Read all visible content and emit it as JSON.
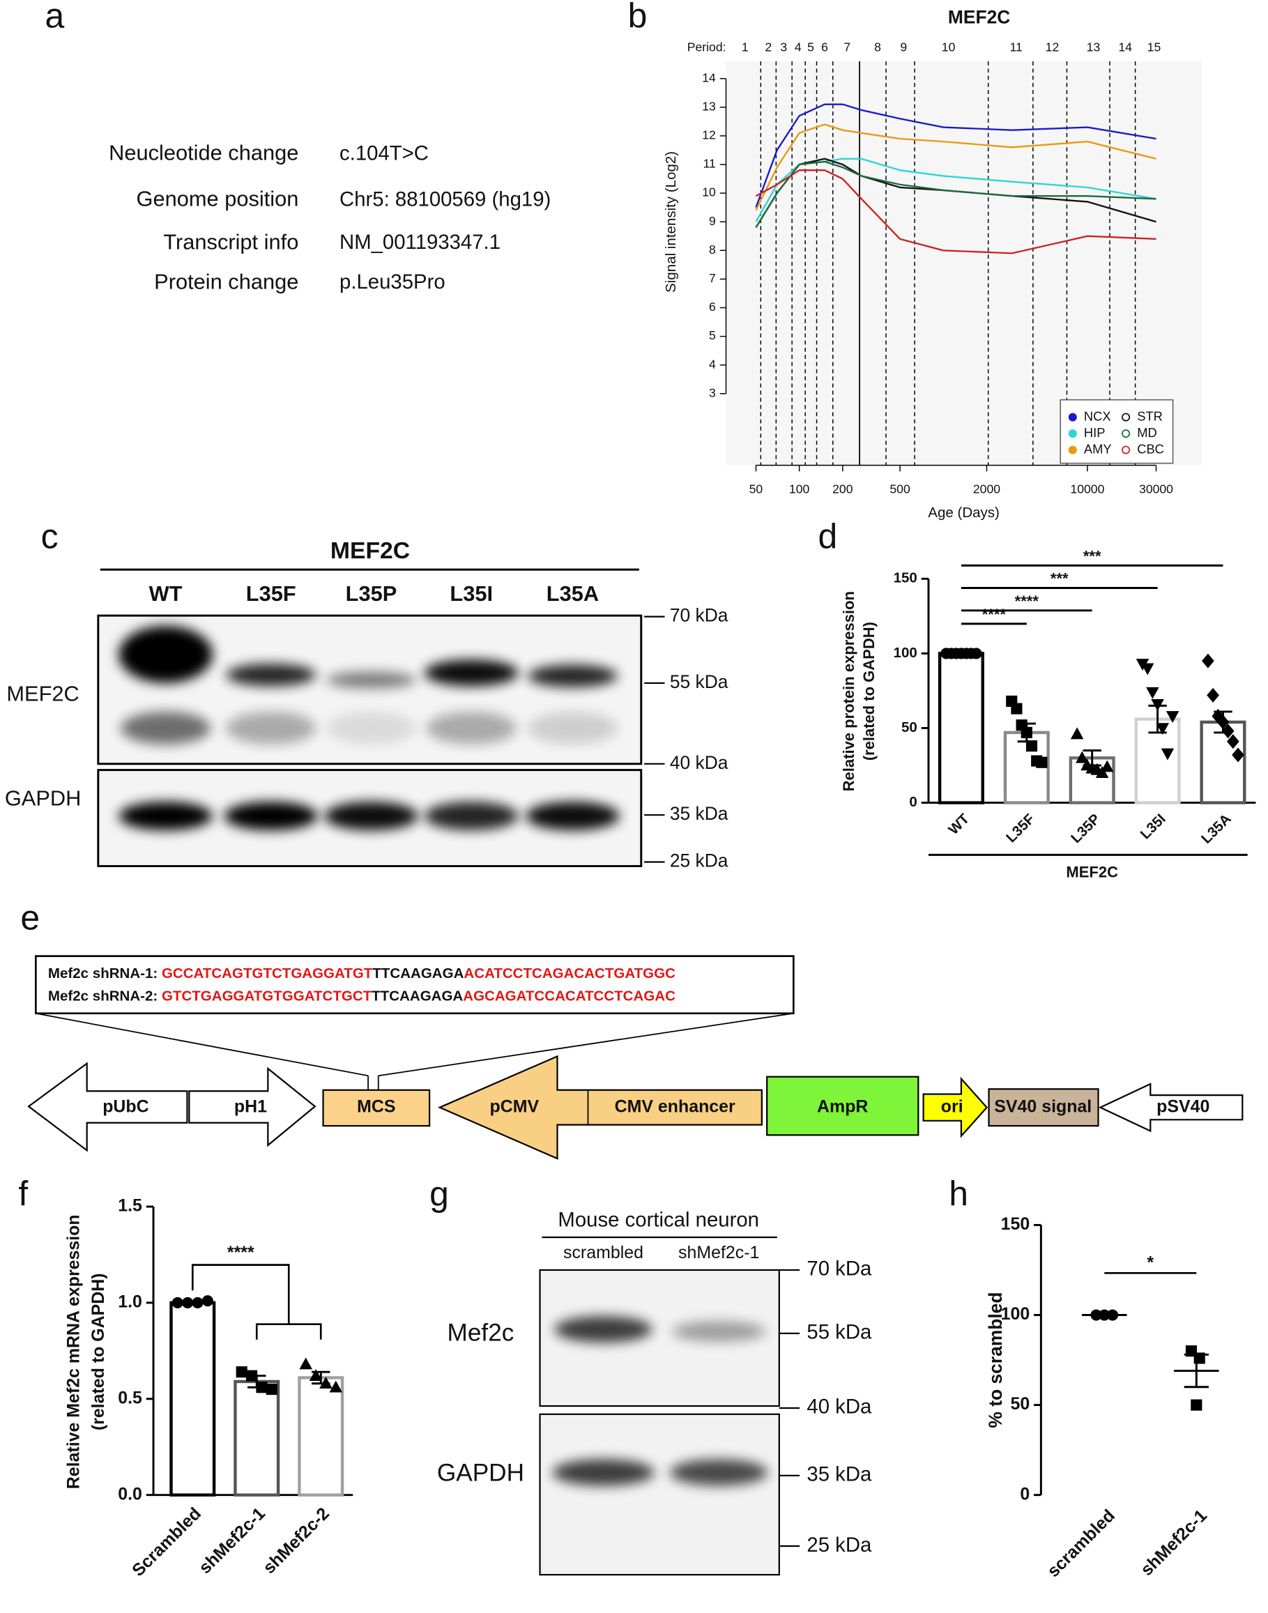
{
  "panel_labels": [
    "a",
    "b",
    "c",
    "d",
    "e",
    "f",
    "g",
    "h"
  ],
  "panel_a": {
    "rows": [
      [
        "Neucleotide change",
        "c.104T>C"
      ],
      [
        "Genome position",
        "Chr5: 88100569 (hg19)"
      ],
      [
        "Transcript info",
        "NM_001193347.1"
      ],
      [
        "Protein change",
        "p.Leu35Pro"
      ]
    ]
  },
  "chart_data": [
    {
      "type": "line",
      "title": "MEF2C",
      "xlabel": "Age (Days)",
      "ylabel": "Signal intensity (Log2)",
      "log_x": true,
      "xlim": [
        31,
        62000
      ],
      "xticks": [
        50,
        100,
        200,
        500,
        2000,
        10000,
        30000
      ],
      "ylim": [
        0.5,
        14.6
      ],
      "yticks": [
        3,
        4,
        5,
        6,
        7,
        8,
        9,
        10,
        11,
        12,
        13,
        14
      ],
      "period": {
        "label": "Period:",
        "labels": [
          1,
          2,
          3,
          4,
          5,
          6,
          7,
          8,
          9,
          10,
          11,
          12,
          13,
          14,
          15
        ],
        "x": [
          42,
          61,
          78,
          98,
          120,
          150,
          215,
          350,
          530,
          1085,
          3200,
          5700,
          11000,
          18300,
          29000
        ]
      },
      "period_lines": [
        54,
        69,
        89,
        110,
        132,
        171,
        400,
        632,
        2050,
        4190,
        7200,
        14300,
        21500
      ],
      "birth_line": 262,
      "x": [
        50,
        70,
        100,
        150,
        200,
        270,
        500,
        1000,
        3000,
        10000,
        30000
      ],
      "series": [
        {
          "name": "NCX",
          "color": "#1a1acc",
          "marker": "filled",
          "values": [
            9.5,
            11.5,
            12.7,
            13.1,
            13.1,
            12.9,
            12.6,
            12.3,
            12.2,
            12.3,
            11.9
          ]
        },
        {
          "name": "HIP",
          "color": "#2ad6d6",
          "marker": "filled",
          "values": [
            9.0,
            10.3,
            11.0,
            11.1,
            11.2,
            11.2,
            10.8,
            10.6,
            10.4,
            10.2,
            9.8
          ]
        },
        {
          "name": "AMY",
          "color": "#e89a10",
          "marker": "filled",
          "values": [
            9.4,
            10.9,
            12.1,
            12.4,
            12.2,
            12.1,
            11.9,
            11.8,
            11.6,
            11.8,
            11.2
          ]
        },
        {
          "name": "STR",
          "color": "#111111",
          "marker": "open",
          "values": [
            8.8,
            10.0,
            11.0,
            11.2,
            11.0,
            10.6,
            10.2,
            10.1,
            9.9,
            9.7,
            9.0
          ]
        },
        {
          "name": "MD",
          "color": "#1e6b3a",
          "marker": "open",
          "values": [
            8.8,
            10.0,
            11.0,
            11.1,
            10.9,
            10.6,
            10.3,
            10.1,
            9.9,
            9.9,
            9.8
          ]
        },
        {
          "name": "CBC",
          "color": "#cc2222",
          "marker": "open",
          "values": [
            9.9,
            10.3,
            10.8,
            10.8,
            10.5,
            9.8,
            8.4,
            8.0,
            7.9,
            8.5,
            8.4
          ]
        }
      ]
    },
    {
      "type": "bar",
      "ylabel": [
        "Relative protein expression",
        "(related to GAPDH)"
      ],
      "group_label": "MEF2C",
      "categories": [
        "WT",
        "L35F",
        "L35P",
        "L35I",
        "L35A"
      ],
      "values": [
        100,
        47,
        30,
        56,
        54
      ],
      "errors": [
        0,
        6,
        5,
        9,
        7
      ],
      "points": [
        [
          100,
          100,
          100,
          100,
          100,
          100,
          100
        ],
        [
          68,
          63,
          52,
          47,
          38,
          28,
          27
        ],
        [
          46,
          30,
          25,
          23,
          22,
          20,
          24
        ],
        [
          93,
          90,
          74,
          66,
          50,
          33,
          58
        ],
        [
          95,
          72,
          58,
          54,
          48,
          41,
          32
        ]
      ],
      "colors": [
        "#000000",
        "#8a8a8a",
        "#6e6e6e",
        "#cfcfcf",
        "#555555"
      ],
      "markers": [
        "circle",
        "square",
        "triangle",
        "triangle-down",
        "diamond"
      ],
      "ylim": [
        0,
        150
      ],
      "yticks": [
        0,
        50,
        100,
        150
      ],
      "significance": [
        {
          "pair": [
            0,
            1
          ],
          "label": "****"
        },
        {
          "pair": [
            0,
            2
          ],
          "label": "****"
        },
        {
          "pair": [
            0,
            3
          ],
          "label": "***"
        },
        {
          "pair": [
            0,
            4
          ],
          "label": "***"
        }
      ]
    },
    {
      "type": "bar",
      "ylabel": [
        "Relative Mef2c mRNA expression",
        "(related to GAPDH)"
      ],
      "categories": [
        "Scrambled",
        "shMef2c-1",
        "shMef2c-2"
      ],
      "values": [
        1.0,
        0.59,
        0.61
      ],
      "errors": [
        0.005,
        0.03,
        0.03
      ],
      "points": [
        [
          1.0,
          1.0,
          1.0,
          1.01
        ],
        [
          0.64,
          0.62,
          0.56,
          0.55
        ],
        [
          0.68,
          0.62,
          0.58,
          0.56
        ]
      ],
      "colors": [
        "#000000",
        "#555555",
        "#a0a0a0"
      ],
      "markers": [
        "circle",
        "square",
        "triangle"
      ],
      "ylim": [
        0,
        1.5
      ],
      "yticks": [
        {
          "value": 0,
          "label": "0.0"
        },
        {
          "value": 0.5,
          "label": "0.5"
        },
        {
          "value": 1,
          "label": "1.0"
        },
        {
          "value": 1.5,
          "label": "1.5"
        }
      ],
      "significance": [
        {
          "label": "****"
        }
      ]
    },
    {
      "type": "dot",
      "ylabel": "% to scrambled",
      "categories": [
        "scrambled",
        "shMef2c-1"
      ],
      "values": [
        100,
        69
      ],
      "errors": [
        0,
        9
      ],
      "points": [
        [
          100,
          100,
          100
        ],
        [
          80,
          76,
          50
        ]
      ],
      "markers": [
        "circle",
        "square"
      ],
      "ylim": [
        0,
        150
      ],
      "yticks": [
        0,
        50,
        100,
        150
      ],
      "significance": [
        {
          "label": "*"
        }
      ]
    }
  ],
  "panel_c": {
    "title": "MEF2C",
    "lanes": [
      "WT",
      "L35F",
      "L35P",
      "L35I",
      "L35A"
    ],
    "rows": [
      "MEF2C",
      "GAPDH"
    ],
    "markers": [
      "70 kDa",
      "55 kDa",
      "40 kDa",
      "35 kDa",
      "25 kDa"
    ]
  },
  "panel_e": {
    "sequences": [
      {
        "label": "Mef2c shRNA-1:",
        "sense": "GCCATCAGTGTCTGAGGATGT",
        "loop": "TTCAAGAGA",
        "antisense": "ACATCCTCAGACACTGATGGC"
      },
      {
        "label": "Mef2c shRNA-2:",
        "sense": "GTCTGAGGATGTGGATCTGCT",
        "loop": "TTCAAGAGA",
        "antisense": "AGCAGATCCACATCCTCAGAC"
      }
    ],
    "elements": [
      "pUbC",
      "pH1",
      "MCS",
      "pCMV",
      "CMV enhancer",
      "AmpR",
      "ori",
      "SV40 signal",
      "pSV40"
    ]
  },
  "panel_g": {
    "title": "Mouse cortical neuron",
    "lanes": [
      "scrambled",
      "shMef2c-1"
    ],
    "rows": [
      "Mef2c",
      "GAPDH"
    ],
    "markers": [
      "70 kDa",
      "55 kDa",
      "40 kDa",
      "35 kDa",
      "25 kDa"
    ]
  }
}
